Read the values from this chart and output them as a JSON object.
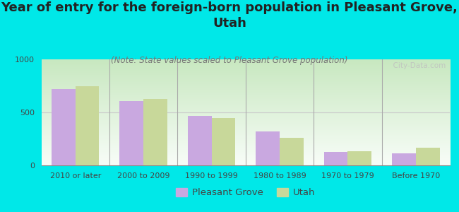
{
  "title": "Year of entry for the foreign-born population in Pleasant Grove,\nUtah",
  "subtitle": "(Note: State values scaled to Pleasant Grove population)",
  "categories": [
    "2010 or later",
    "2000 to 2009",
    "1990 to 1999",
    "1980 to 1989",
    "1970 to 1979",
    "Before 1970"
  ],
  "pleasant_grove": [
    720,
    610,
    470,
    320,
    130,
    115
  ],
  "utah": [
    750,
    625,
    450,
    260,
    135,
    170
  ],
  "pg_color": "#c9a8e0",
  "utah_color": "#c8d89a",
  "background_outer": "#00e8e8",
  "ylim": [
    0,
    1000
  ],
  "yticks": [
    0,
    500,
    1000
  ],
  "bar_width": 0.35,
  "title_fontsize": 13,
  "subtitle_fontsize": 8.5,
  "tick_fontsize": 8,
  "legend_fontsize": 9.5,
  "watermark": "  City-Data.com"
}
